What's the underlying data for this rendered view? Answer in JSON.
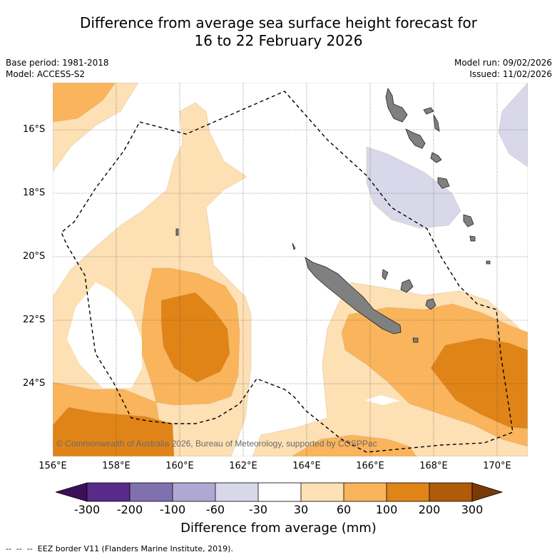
{
  "title_line1": "Difference from average sea surface height forecast for",
  "title_line2": "16 to 22 February 2026",
  "base_period": "Base period: 1981-2018",
  "model": "Model: ACCESS-S2",
  "model_run": "Model run: 09/02/2026",
  "issued": "Issued: 11/02/2026",
  "copyright": "© Commonwealth of Australia 2026, Bureau of Meteorology, supported by COSPPac",
  "lat_labels": [
    "16°S",
    "18°S",
    "20°S",
    "22°S",
    "24°S"
  ],
  "lon_labels": [
    "156°E",
    "158°E",
    "160°E",
    "162°E",
    "164°E",
    "166°E",
    "168°E",
    "170°E"
  ],
  "colorbar": {
    "ticks": [
      "-300",
      "-200",
      "-100",
      "-60",
      "-30",
      "30",
      "60",
      "100",
      "200",
      "300"
    ],
    "label": "Difference from average (mm)",
    "colors": [
      "#3b0f5a",
      "#5a2a8a",
      "#8070b0",
      "#aea8d2",
      "#d8d8ea",
      "#ffffff",
      "#fde0b4",
      "#f9b45c",
      "#e08418",
      "#b05a0c",
      "#7a3a08"
    ]
  },
  "legend_eez": "EEZ border V11 (Flanders Marine Institute, 2019)."
}
